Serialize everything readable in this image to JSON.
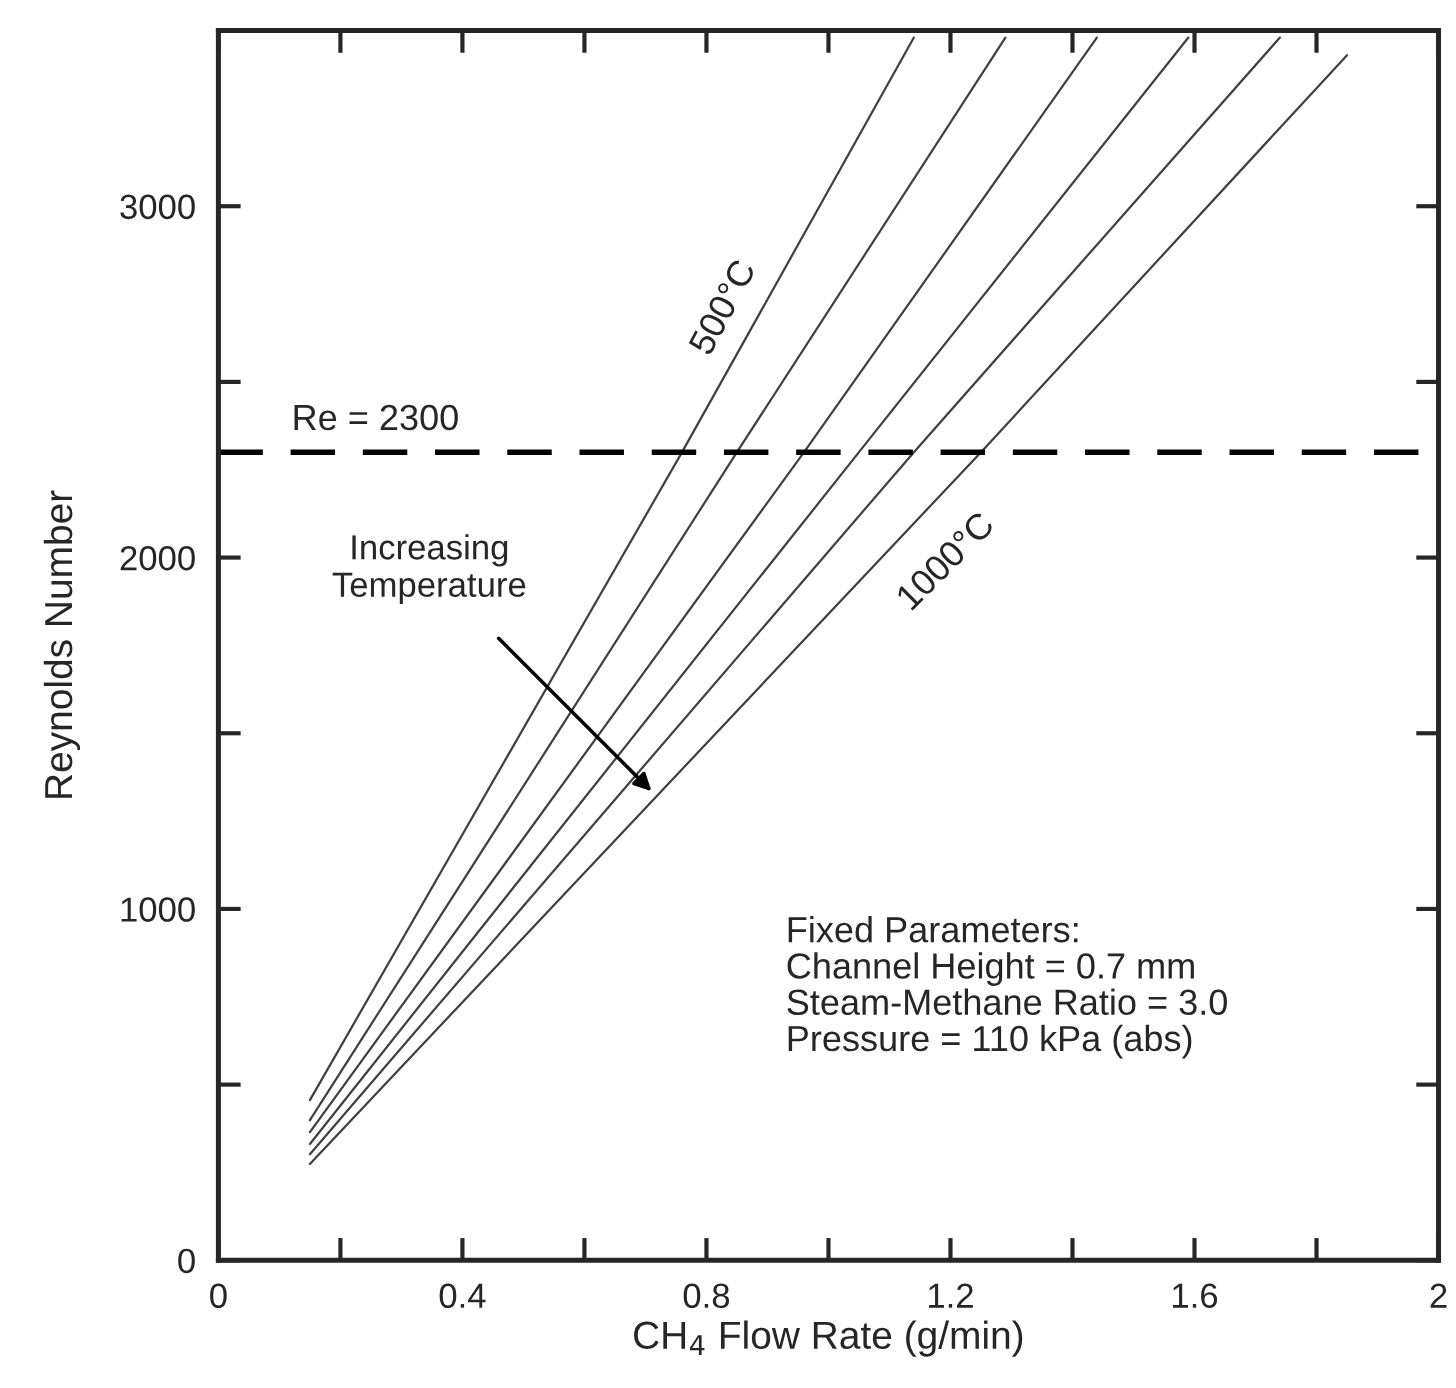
{
  "chart_data": {
    "type": "line",
    "xlabel": "CH$_{4}$ Flow Rate (g/min)",
    "ylabel": "Reynolds Number",
    "xlim": [
      0,
      2
    ],
    "ylim": [
      0,
      3500
    ],
    "xticks": [
      0,
      {
        "value": 0.2,
        "label": null
      },
      0.4,
      {
        "value": 0.6,
        "label": null
      },
      0.8,
      {
        "value": 1.0,
        "label": null
      },
      1.2,
      {
        "value": 1.4,
        "label": null
      },
      1.6,
      {
        "value": 1.8,
        "label": null
      },
      2
    ],
    "yticks": [
      0,
      {
        "value": 500,
        "label": null
      },
      1000,
      {
        "value": 1500,
        "label": null
      },
      2000,
      {
        "value": 2500,
        "label": null
      },
      3000
    ],
    "grid": false,
    "marker": "none",
    "line_style": "solid",
    "series": [
      {
        "color": "#404040",
        "x": [
          0.15,
          0.76,
          1.14
        ],
        "values": [
          456,
          2300,
          3480
        ]
      },
      {
        "color": "#404040",
        "x": [
          0.15,
          0.85,
          1.29
        ],
        "values": [
          399,
          2300,
          3480
        ]
      },
      {
        "color": "#404040",
        "x": [
          0.15,
          0.96,
          1.44
        ],
        "values": [
          365,
          2300,
          3480
        ]
      },
      {
        "color": "#404040",
        "x": [
          0.15,
          1.05,
          1.59
        ],
        "values": [
          331,
          2300,
          3480
        ]
      },
      {
        "color": "#404040",
        "x": [
          0.15,
          1.14,
          1.74
        ],
        "values": [
          302,
          2300,
          3480
        ]
      },
      {
        "color": "#404040",
        "x": [
          0.15,
          1.25,
          1.85
        ],
        "values": [
          274,
          2300,
          3430
        ]
      }
    ],
    "ref_lines": [
      {
        "axis": "y",
        "value": 2300,
        "label": "Re = 2300",
        "color": "#000000",
        "line_style": "dashed"
      }
    ],
    "annotations": [
      "500°C",
      "1000°C",
      {
        "text": "Increasing\nTemperature",
        "x": 0.71,
        "y": 1335
      },
      "Fixed Parameters:\nChannel Height = 0.7 mm\nSteam-Methane Ratio = 3.0\nPressure = 110 kPa (abs)"
    ]
  }
}
